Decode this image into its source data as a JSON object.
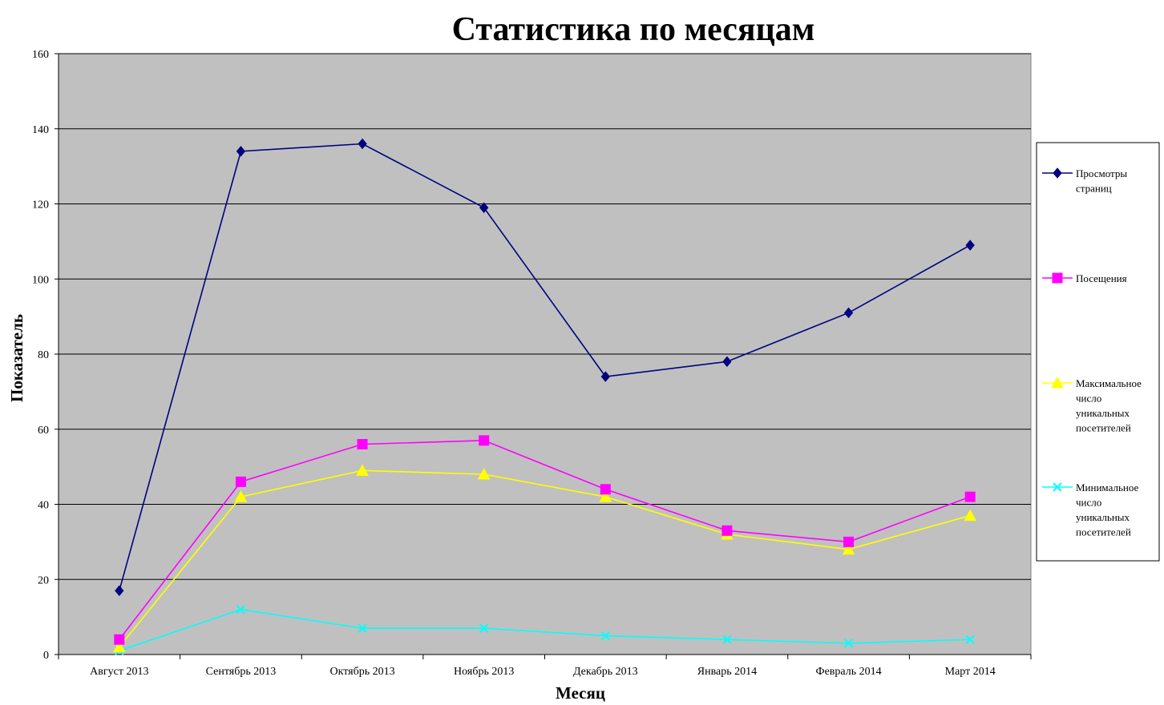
{
  "chart_data": {
    "type": "line",
    "title": "Статистика по месяцам",
    "xlabel": "Месяц",
    "ylabel": "Показатель",
    "ylim": [
      0,
      160
    ],
    "yticks": [
      0,
      20,
      40,
      60,
      80,
      100,
      120,
      140,
      160
    ],
    "grid": true,
    "legend_position": "right",
    "categories": [
      "Август 2013",
      "Сентябрь 2013",
      "Октябрь 2013",
      "Ноябрь 2013",
      "Декабрь 2013",
      "Январь 2014",
      "Февраль 2014",
      "Март 2014"
    ],
    "series": [
      {
        "name": "Просмотры страниц",
        "legend_lines": [
          "Просмотры",
          "страниц"
        ],
        "color": "#000080",
        "marker": "diamond",
        "values": [
          17,
          134,
          136,
          119,
          74,
          78,
          91,
          109
        ]
      },
      {
        "name": "Посещения",
        "legend_lines": [
          "Посещения"
        ],
        "color": "#ff00ff",
        "marker": "square",
        "values": [
          4,
          46,
          56,
          57,
          44,
          33,
          30,
          42
        ]
      },
      {
        "name": "Максимальное число уникальных посетителей",
        "legend_lines": [
          "Максимальное",
          "число",
          "уникальных",
          "посетителей"
        ],
        "color": "#ffff00",
        "marker": "triangle",
        "values": [
          2,
          42,
          49,
          48,
          42,
          32,
          28,
          37
        ]
      },
      {
        "name": "Минимальное число уникальных посетителей",
        "legend_lines": [
          "Минимальное",
          "число",
          "уникальных",
          "посетителей"
        ],
        "color": "#00ffff",
        "marker": "x",
        "values": [
          1,
          12,
          7,
          7,
          5,
          4,
          3,
          4
        ]
      }
    ],
    "plot_background": "#c0c0c0"
  }
}
